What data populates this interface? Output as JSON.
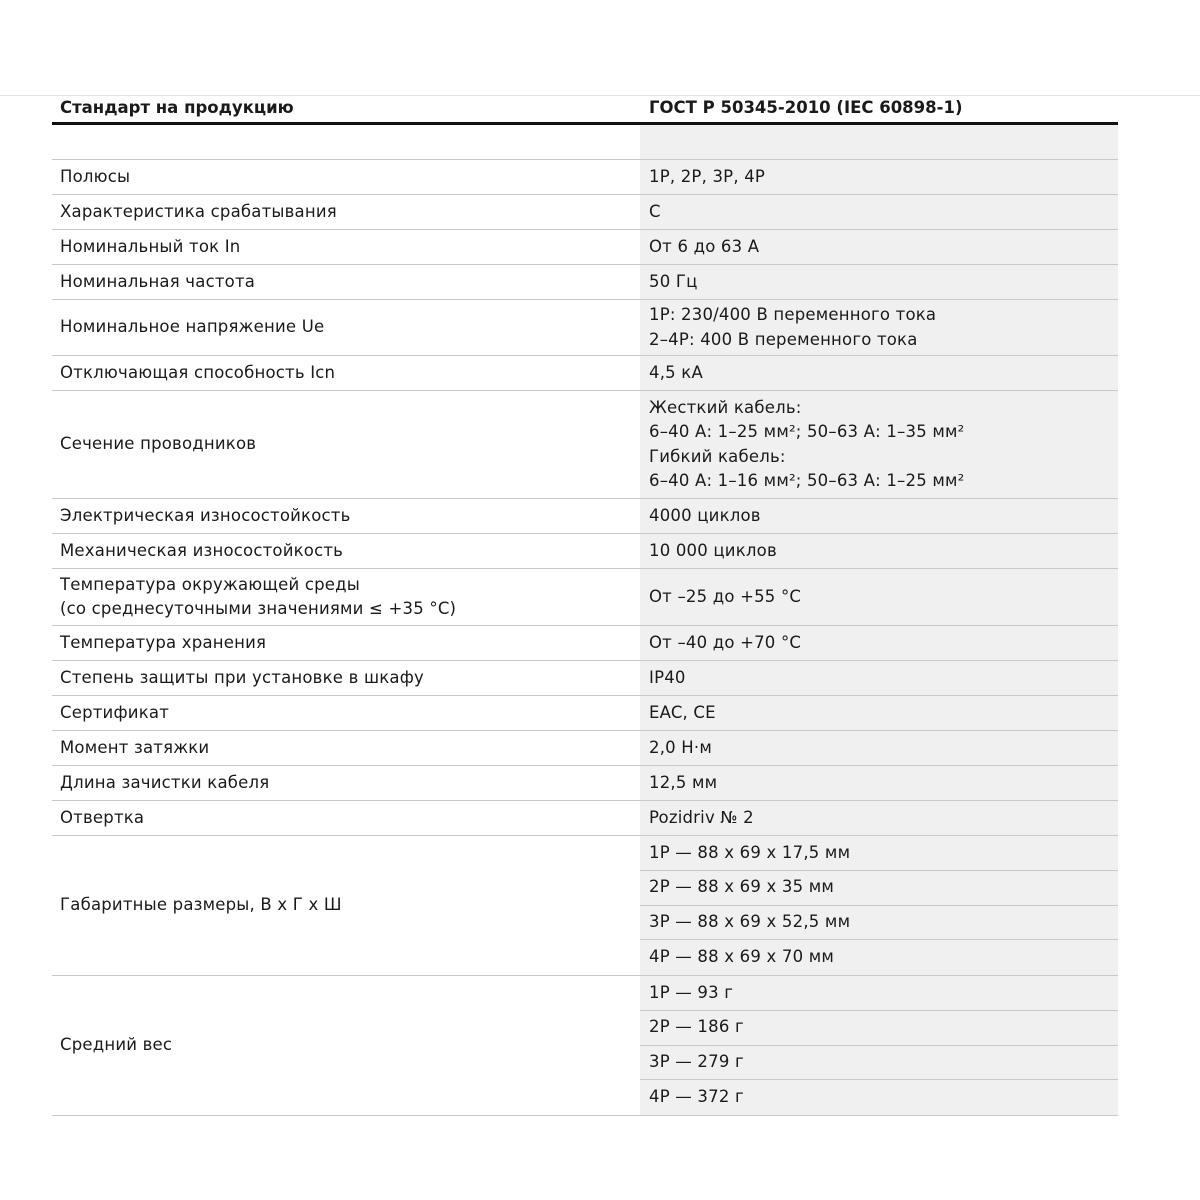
{
  "header": {
    "label": "Стандарт на продукцию",
    "value": "ГОСТ Р 50345-2010 (IEC 60898-1)"
  },
  "rows": [
    {
      "label": [
        ""
      ],
      "value": [
        ""
      ]
    },
    {
      "label": [
        "Полюсы"
      ],
      "value": [
        "1P, 2P, 3P, 4P"
      ]
    },
    {
      "label": [
        "Характеристика срабатывания"
      ],
      "value": [
        "C"
      ]
    },
    {
      "label": [
        "Номинальный ток In"
      ],
      "value": [
        "От 6 до 63 А"
      ]
    },
    {
      "label": [
        "Номинальная частота"
      ],
      "value": [
        "50 Гц"
      ]
    },
    {
      "label": [
        "Номинальное напряжение Ue"
      ],
      "value": [
        "1P: 230/400 В переменного тока",
        "2–4P: 400 В переменного тока"
      ]
    },
    {
      "label": [
        "Отключающая способность Icn"
      ],
      "value": [
        "4,5 кА"
      ]
    },
    {
      "label": [
        "Сечение проводников"
      ],
      "value": [
        "Жесткий кабель:",
        "6–40 А: 1–25 мм²; 50–63 А: 1–35 мм²",
        "Гибкий кабель:",
        "6–40 А: 1–16 мм²; 50–63 А: 1–25 мм²"
      ]
    },
    {
      "label": [
        "Электрическая износостойкость"
      ],
      "value": [
        "4000 циклов"
      ]
    },
    {
      "label": [
        "Механическая износостойкость"
      ],
      "value": [
        "10 000 циклов"
      ]
    },
    {
      "label": [
        "Температура окружающей среды",
        "(со среднесуточными значениями ≤ +35 °C)"
      ],
      "value": [
        "От –25 до +55 °C"
      ]
    },
    {
      "label": [
        "Температура хранения"
      ],
      "value": [
        "От –40 до +70 °C"
      ]
    },
    {
      "label": [
        "Степень защиты при установке в шкафу"
      ],
      "value": [
        "IP40"
      ]
    },
    {
      "label": [
        "Сертификат"
      ],
      "value": [
        "EAC, CE"
      ]
    },
    {
      "label": [
        "Момент затяжки"
      ],
      "value": [
        "2,0 Н·м"
      ]
    },
    {
      "label": [
        "Длина зачистки кабеля"
      ],
      "value": [
        "12,5 мм"
      ]
    },
    {
      "label": [
        "Отвертка"
      ],
      "value": [
        "Pozidriv № 2"
      ]
    },
    {
      "label": [
        "Габаритные размеры, В x Г x Ш"
      ],
      "subvalues": [
        "1P — 88 x 69 x 17,5 мм",
        "2P — 88 x 69 x 35 мм",
        "3P — 88 x 69 x 52,5 мм",
        "4P — 88 x 69 x 70 мм"
      ]
    },
    {
      "label": [
        "Средний вес"
      ],
      "subvalues": [
        "1P — 93 г",
        "2P — 186 г",
        "3P — 279 г",
        "4P — 372 г"
      ]
    }
  ]
}
